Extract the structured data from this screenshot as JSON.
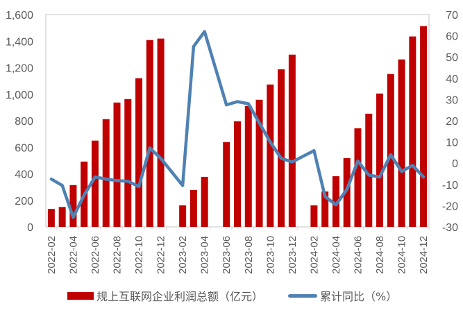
{
  "chart_data": {
    "type": "bar+line",
    "title": "",
    "categories": [
      "2022-02",
      "2022-03",
      "2022-04",
      "2022-05",
      "2022-06",
      "2022-07",
      "2022-08",
      "2022-09",
      "2022-10",
      "2022-11",
      "2022-12",
      "2023-01",
      "2023-02",
      "2023-03",
      "2023-04",
      "2023-05",
      "2023-06",
      "2023-07",
      "2023-08",
      "2023-09",
      "2023-10",
      "2023-11",
      "2023-12",
      "2024-01",
      "2024-02",
      "2024-03",
      "2024-04",
      "2024-05",
      "2024-06",
      "2024-07",
      "2024-08",
      "2024-09",
      "2024-10",
      "2024-11",
      "2024-12"
    ],
    "x_tick_labels": [
      "2022-02",
      "2022-04",
      "2022-06",
      "2022-08",
      "2022-10",
      "2022-12",
      "2023-02",
      "2023-04",
      "2023-06",
      "2023-08",
      "2023-10",
      "2023-12",
      "2024-02",
      "2024-04",
      "2024-06",
      "2024-08",
      "2024-10",
      "2024-12"
    ],
    "series": [
      {
        "name": "规上互联网企业利润总额（亿元）",
        "type": "bar",
        "axis": "left",
        "color": "#C00000",
        "values": [
          135,
          150,
          315,
          492,
          650,
          812,
          937,
          963,
          1120,
          1408,
          1419,
          null,
          162,
          277,
          377,
          null,
          639,
          796,
          911,
          958,
          1073,
          1188,
          1298,
          null,
          162,
          267,
          382,
          518,
          743,
          853,
          1005,
          1152,
          1262,
          1435,
          1513
        ]
      },
      {
        "name": "累计同比（%）",
        "type": "line",
        "axis": "right",
        "color": "#4F81B3",
        "values": [
          -7.5,
          -10.5,
          -25.5,
          -15,
          -6.5,
          -7.5,
          -8.2,
          -8.5,
          -11,
          7.2,
          2.3,
          null,
          -10.5,
          55,
          62,
          null,
          27.5,
          29,
          28,
          19,
          10,
          2.3,
          0.6,
          null,
          5.9,
          -15.7,
          -19.6,
          -12.4,
          1,
          -5.6,
          -6.5,
          4,
          -3.9,
          -1,
          -6.5
        ]
      }
    ],
    "left_axis": {
      "min": 0,
      "max": 1600,
      "step": 200,
      "tick_labels": [
        "0",
        "200",
        "400",
        "600",
        "800",
        "1,000",
        "1,200",
        "1,400",
        "1,600"
      ]
    },
    "right_axis": {
      "min": -30,
      "max": 70,
      "step": 10,
      "tick_labels": [
        "-30",
        "-20",
        "-10",
        "0",
        "10",
        "20",
        "30",
        "40",
        "50",
        "60",
        "70"
      ]
    },
    "xlabel": "",
    "ylabel": "",
    "grid": false,
    "legend_position": "bottom"
  },
  "legend": {
    "bar_label": "规上互联网企业利润总额（亿元）",
    "line_label": "累计同比（%）"
  }
}
